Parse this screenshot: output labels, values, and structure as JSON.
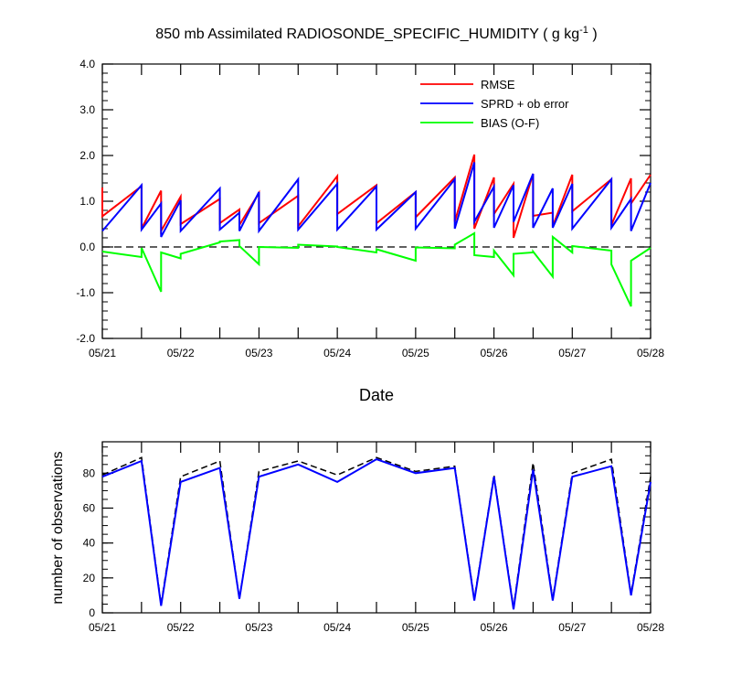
{
  "chart_data": [
    {
      "type": "line",
      "title": "850 mb Assimilated RADIOSONDE_SPECIFIC_HUMIDITY ( g kg",
      "title_superscript": "-1",
      "title_suffix": " )",
      "xlabel": "Date",
      "ylabel": "",
      "ylim": [
        -2.0,
        4.0
      ],
      "yticks": [
        -2.0,
        -1.0,
        0.0,
        1.0,
        2.0,
        3.0,
        4.0
      ],
      "ytick_labels": [
        "-2.0",
        "-1.0",
        "0.0",
        "1.0",
        "2.0",
        "3.0",
        "4.0"
      ],
      "xlim": [
        0,
        7
      ],
      "xticks": [
        0,
        1,
        2,
        3,
        4,
        5,
        6,
        7
      ],
      "xtick_labels": [
        "05/21",
        "05/22",
        "05/23",
        "05/24",
        "05/25",
        "05/26",
        "05/27",
        "05/28"
      ],
      "legend_position": "top-right",
      "zero_line": "dashed",
      "series": [
        {
          "name": "RMSE",
          "color": "#ff0000",
          "x": [
            0,
            0,
            0.5,
            0.5,
            0.75,
            0.75,
            1.0,
            1.0,
            1.5,
            1.5,
            1.75,
            1.75,
            2.0,
            2.0,
            2.5,
            2.5,
            3.0,
            3.0,
            3.5,
            3.5,
            4.0,
            4.0,
            4.5,
            4.5,
            4.75,
            4.75,
            5.0,
            5.0,
            5.25,
            5.25,
            5.5,
            5.5,
            5.75,
            5.75,
            6.0,
            6.0,
            6.5,
            6.5,
            6.75,
            6.75,
            7.0
          ],
          "values": [
            1.3,
            0.67,
            1.33,
            0.4,
            1.23,
            0.35,
            1.1,
            0.5,
            1.05,
            0.52,
            0.82,
            0.48,
            1.18,
            0.52,
            1.12,
            0.45,
            1.55,
            0.72,
            1.35,
            0.52,
            1.2,
            0.65,
            1.52,
            0.55,
            2.02,
            0.4,
            1.52,
            0.72,
            1.38,
            0.2,
            1.6,
            0.68,
            0.75,
            0.45,
            1.58,
            0.78,
            1.48,
            0.48,
            1.5,
            0.95,
            1.58
          ]
        },
        {
          "name": "SPRD + ob error",
          "color": "#0000ff",
          "x": [
            0,
            0.5,
            0.5,
            0.75,
            0.75,
            1.0,
            1.0,
            1.5,
            1.5,
            1.75,
            1.75,
            2.0,
            2.0,
            2.5,
            2.5,
            3.0,
            3.0,
            3.5,
            3.5,
            4.0,
            4.0,
            4.5,
            4.5,
            4.75,
            4.75,
            5.0,
            5.0,
            5.25,
            5.25,
            5.5,
            5.5,
            5.75,
            5.75,
            6.0,
            6.0,
            6.5,
            6.5,
            6.75,
            6.75,
            7.0
          ],
          "values": [
            0.35,
            1.35,
            0.38,
            0.95,
            0.22,
            1.02,
            0.35,
            1.28,
            0.38,
            0.75,
            0.35,
            1.2,
            0.35,
            1.48,
            0.38,
            1.38,
            0.38,
            1.32,
            0.38,
            1.2,
            0.4,
            1.48,
            0.4,
            1.85,
            0.55,
            1.32,
            0.42,
            1.35,
            0.55,
            1.6,
            0.42,
            1.28,
            0.42,
            1.38,
            0.4,
            1.48,
            0.42,
            1.05,
            0.35,
            1.4
          ]
        },
        {
          "name": "BIAS (O-F)",
          "color": "#00ff00",
          "x": [
            0,
            0.5,
            0.5,
            0.75,
            0.75,
            1.0,
            1.0,
            1.5,
            1.5,
            1.75,
            1.75,
            2.0,
            2.0,
            2.5,
            2.5,
            3.0,
            3.0,
            3.5,
            3.5,
            4.0,
            4.0,
            4.5,
            4.5,
            4.75,
            4.75,
            5.0,
            5.0,
            5.25,
            5.25,
            5.5,
            5.5,
            5.75,
            5.75,
            6.0,
            6.0,
            6.5,
            6.5,
            6.75,
            6.75,
            7.0
          ],
          "values": [
            -0.1,
            -0.22,
            -0.02,
            -0.98,
            -0.12,
            -0.25,
            -0.15,
            0.1,
            0.12,
            0.15,
            0.02,
            -0.38,
            0.0,
            -0.02,
            0.05,
            0.01,
            0.0,
            -0.12,
            -0.05,
            -0.3,
            -0.01,
            -0.03,
            0.05,
            0.3,
            -0.18,
            -0.22,
            -0.08,
            -0.62,
            -0.15,
            -0.12,
            -0.1,
            -0.65,
            0.22,
            -0.12,
            0.02,
            -0.08,
            -0.38,
            -1.3,
            -0.3,
            -0.02
          ]
        }
      ]
    },
    {
      "type": "line",
      "title": "",
      "xlabel": "",
      "ylabel": "number of observations",
      "ylim": [
        0,
        98
      ],
      "yticks": [
        0,
        20,
        40,
        60,
        80
      ],
      "ytick_labels": [
        "0",
        "20",
        "40",
        "60",
        "80"
      ],
      "xlim": [
        0,
        7
      ],
      "xticks": [
        0,
        1,
        2,
        3,
        4,
        5,
        6,
        7
      ],
      "xtick_labels": [
        "05/21",
        "05/22",
        "05/23",
        "05/24",
        "05/25",
        "05/26",
        "05/27",
        "05/28"
      ],
      "series": [
        {
          "style": "dashed",
          "color": "#000000",
          "x": [
            0,
            0.5,
            0.75,
            1.0,
            1.5,
            1.75,
            2.0,
            2.5,
            3.0,
            3.5,
            4.0,
            4.5,
            4.75,
            5.0,
            5.25,
            5.5,
            5.75,
            6.0,
            6.5,
            6.75,
            7.0
          ],
          "values": [
            79,
            89,
            5,
            78,
            87,
            8,
            81,
            87,
            79,
            89,
            81,
            84,
            8,
            79,
            3,
            86,
            8,
            80,
            88,
            11,
            78
          ]
        },
        {
          "style": "solid",
          "color": "#0000ff",
          "x": [
            0,
            0.5,
            0.75,
            1.0,
            1.5,
            1.75,
            2.0,
            2.5,
            3.0,
            3.5,
            4.0,
            4.5,
            4.75,
            5.0,
            5.25,
            5.5,
            5.75,
            6.0,
            6.5,
            6.75,
            7.0
          ],
          "values": [
            78,
            87,
            4,
            75,
            83,
            8,
            78,
            85,
            75,
            88,
            80,
            83,
            7,
            78,
            2,
            82,
            7,
            78,
            84,
            10,
            75
          ]
        }
      ]
    }
  ]
}
